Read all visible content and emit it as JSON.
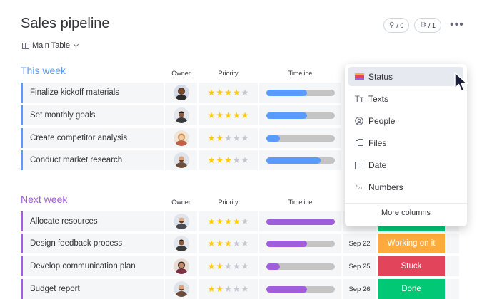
{
  "board": {
    "title": "Sales pipeline",
    "view_tab": "Main Table",
    "integrations_count": "/ 0",
    "automations_count": "/ 1",
    "more_label": "•••"
  },
  "columns": {
    "owner": "Owner",
    "priority": "Priority",
    "timeline": "Timeline"
  },
  "colors": {
    "blue": "#579bfc",
    "purple": "#a25ddc",
    "star": "#ffcb00",
    "star_empty": "#c5c7d0",
    "bar_empty": "#c4c4c4"
  },
  "groups": [
    {
      "title": "This week",
      "color": "#579bfc",
      "rows": [
        {
          "name": "Finalize kickoff materials",
          "stars": 4,
          "progress": 0.6
        },
        {
          "name": "Set monthly goals",
          "stars": 5,
          "progress": 0.6
        },
        {
          "name": "Create competitor analysis",
          "stars": 2,
          "progress": 0.2
        },
        {
          "name": "Conduct market research",
          "stars": 3,
          "progress": 0.8
        }
      ]
    },
    {
      "title": "Next week",
      "color": "#a25ddc",
      "rows": [
        {
          "name": "Allocate resources",
          "stars": 4,
          "progress": 1.0,
          "date": "",
          "status": "",
          "status_color": "#00c875"
        },
        {
          "name": "Design feedback process",
          "stars": 3,
          "progress": 0.6,
          "date": "Sep 22",
          "status": "Working on it",
          "status_color": "#fdab3d"
        },
        {
          "name": "Develop communication plan",
          "stars": 2,
          "progress": 0.2,
          "date": "Sep 25",
          "status": "Stuck",
          "status_color": "#e2445c"
        },
        {
          "name": "Budget report",
          "stars": 2,
          "progress": 0.6,
          "date": "Sep 26",
          "status": "Done",
          "status_color": "#00c875"
        }
      ]
    }
  ],
  "column_menu": {
    "items": [
      {
        "label": "Status",
        "icon": "status-icon"
      },
      {
        "label": "Texts",
        "icon": "text-icon"
      },
      {
        "label": "People",
        "icon": "people-icon"
      },
      {
        "label": "Files",
        "icon": "files-icon"
      },
      {
        "label": "Date",
        "icon": "calendar-icon"
      },
      {
        "label": "Numbers",
        "icon": "numbers-icon"
      }
    ],
    "more_columns": "More columns"
  }
}
